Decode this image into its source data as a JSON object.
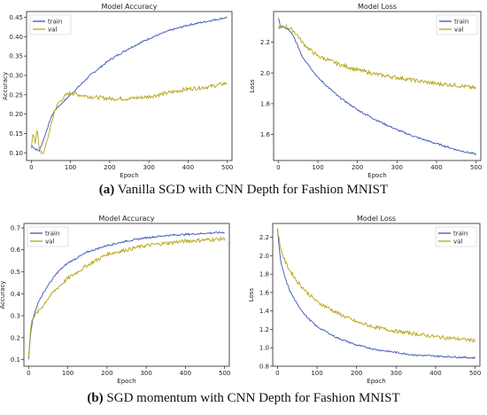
{
  "captions": {
    "a_label": "(a)",
    "a_text": " Vanilla SGD with CNN Depth for Fashion MNIST",
    "b_label": "(b)",
    "b_text": " SGD momentum with CNN Depth for Fashion MNIST"
  },
  "colors": {
    "train": "#3a55b5",
    "val": "#b5a414"
  },
  "chart_data": [
    {
      "id": "a-accuracy",
      "type": "line",
      "title": "Model Accuracy",
      "xlabel": "Epoch",
      "ylabel": "Accuracy",
      "xlim": [
        -12,
        512
      ],
      "ylim": [
        0.08,
        0.465
      ],
      "xticks": [
        0,
        100,
        200,
        300,
        400,
        500
      ],
      "yticks": [
        0.1,
        0.15,
        0.2,
        0.25,
        0.3,
        0.35,
        0.4,
        0.45
      ],
      "ytick_labels": [
        "0.10",
        "0.15",
        "0.20",
        "0.25",
        "0.30",
        "0.35",
        "0.40",
        "0.45"
      ],
      "legend": "top-left",
      "grid": false,
      "series": [
        {
          "name": "train",
          "x": [
            0,
            10,
            20,
            30,
            40,
            50,
            60,
            70,
            80,
            100,
            120,
            150,
            200,
            250,
            300,
            350,
            400,
            450,
            500
          ],
          "y": [
            0.12,
            0.11,
            0.105,
            0.13,
            0.16,
            0.19,
            0.21,
            0.22,
            0.23,
            0.25,
            0.27,
            0.3,
            0.34,
            0.37,
            0.395,
            0.415,
            0.43,
            0.44,
            0.45
          ]
        },
        {
          "name": "val",
          "x": [
            0,
            5,
            10,
            15,
            20,
            25,
            30,
            35,
            40,
            50,
            60,
            70,
            80,
            90,
            100,
            120,
            150,
            200,
            250,
            300,
            350,
            400,
            450,
            500
          ],
          "y": [
            0.11,
            0.15,
            0.12,
            0.17,
            0.11,
            0.1,
            0.1,
            0.11,
            0.13,
            0.17,
            0.21,
            0.23,
            0.24,
            0.25,
            0.255,
            0.25,
            0.245,
            0.24,
            0.24,
            0.245,
            0.255,
            0.265,
            0.27,
            0.28
          ]
        }
      ]
    },
    {
      "id": "a-loss",
      "type": "line",
      "title": "Model Loss",
      "xlabel": "Epoch",
      "ylabel": "Loss",
      "xlim": [
        -12,
        512
      ],
      "ylim": [
        1.43,
        2.4
      ],
      "xticks": [
        0,
        100,
        200,
        300,
        400,
        500
      ],
      "yticks": [
        1.6,
        1.8,
        2.0,
        2.2
      ],
      "ytick_labels": [
        "1.6",
        "1.8",
        "2.0",
        "2.2"
      ],
      "legend": "top-right",
      "grid": false,
      "series": [
        {
          "name": "train",
          "x": [
            0,
            5,
            10,
            20,
            30,
            40,
            50,
            60,
            80,
            100,
            150,
            200,
            250,
            300,
            350,
            400,
            450,
            500
          ],
          "y": [
            2.36,
            2.3,
            2.3,
            2.29,
            2.27,
            2.23,
            2.17,
            2.11,
            2.04,
            1.97,
            1.85,
            1.76,
            1.69,
            1.63,
            1.58,
            1.54,
            1.5,
            1.47
          ]
        },
        {
          "name": "val",
          "x": [
            0,
            10,
            20,
            30,
            40,
            50,
            60,
            80,
            100,
            150,
            200,
            250,
            300,
            350,
            400,
            450,
            500
          ],
          "y": [
            2.3,
            2.3,
            2.3,
            2.29,
            2.27,
            2.24,
            2.2,
            2.15,
            2.11,
            2.06,
            2.02,
            1.99,
            1.97,
            1.95,
            1.93,
            1.92,
            1.9
          ]
        }
      ]
    },
    {
      "id": "b-accuracy",
      "type": "line",
      "title": "Model Accuracy",
      "xlabel": "Epoch",
      "ylabel": "Accuracy",
      "xlim": [
        -12,
        512
      ],
      "ylim": [
        0.07,
        0.72
      ],
      "xticks": [
        0,
        100,
        200,
        300,
        400,
        500
      ],
      "yticks": [
        0.1,
        0.2,
        0.3,
        0.4,
        0.5,
        0.6,
        0.7
      ],
      "ytick_labels": [
        "0.1",
        "0.2",
        "0.3",
        "0.4",
        "0.5",
        "0.6",
        "0.7"
      ],
      "legend": "top-left",
      "grid": false,
      "series": [
        {
          "name": "train",
          "x": [
            0,
            5,
            10,
            20,
            30,
            50,
            75,
            100,
            150,
            200,
            250,
            300,
            350,
            400,
            450,
            500
          ],
          "y": [
            0.1,
            0.22,
            0.28,
            0.34,
            0.38,
            0.44,
            0.5,
            0.54,
            0.59,
            0.62,
            0.64,
            0.655,
            0.665,
            0.67,
            0.675,
            0.68
          ]
        },
        {
          "name": "val",
          "x": [
            0,
            5,
            10,
            20,
            30,
            50,
            75,
            100,
            150,
            200,
            250,
            300,
            350,
            400,
            450,
            500
          ],
          "y": [
            0.11,
            0.24,
            0.29,
            0.31,
            0.33,
            0.38,
            0.43,
            0.47,
            0.53,
            0.58,
            0.6,
            0.62,
            0.63,
            0.64,
            0.645,
            0.65
          ]
        }
      ]
    },
    {
      "id": "b-loss",
      "type": "line",
      "title": "Model Loss",
      "xlabel": "Epoch",
      "ylabel": "Loss",
      "xlim": [
        -12,
        512
      ],
      "ylim": [
        0.8,
        2.35
      ],
      "xticks": [
        0,
        100,
        200,
        300,
        400,
        500
      ],
      "yticks": [
        0.8,
        1.0,
        1.2,
        1.4,
        1.6,
        1.8,
        2.0,
        2.2
      ],
      "ytick_labels": [
        "0.8",
        "1.0",
        "1.2",
        "1.4",
        "1.6",
        "1.8",
        "2.0",
        "2.2"
      ],
      "legend": "top-right",
      "grid": false,
      "series": [
        {
          "name": "train",
          "x": [
            0,
            5,
            10,
            20,
            30,
            50,
            75,
            100,
            150,
            200,
            250,
            300,
            350,
            400,
            450,
            500
          ],
          "y": [
            2.3,
            2.05,
            1.9,
            1.75,
            1.63,
            1.47,
            1.33,
            1.23,
            1.11,
            1.03,
            0.98,
            0.95,
            0.92,
            0.91,
            0.9,
            0.89
          ]
        },
        {
          "name": "val",
          "x": [
            0,
            5,
            10,
            20,
            30,
            50,
            75,
            100,
            150,
            200,
            250,
            300,
            350,
            400,
            450,
            500
          ],
          "y": [
            2.3,
            2.15,
            2.05,
            1.93,
            1.85,
            1.72,
            1.6,
            1.5,
            1.38,
            1.28,
            1.22,
            1.18,
            1.15,
            1.12,
            1.1,
            1.08
          ]
        }
      ]
    }
  ]
}
